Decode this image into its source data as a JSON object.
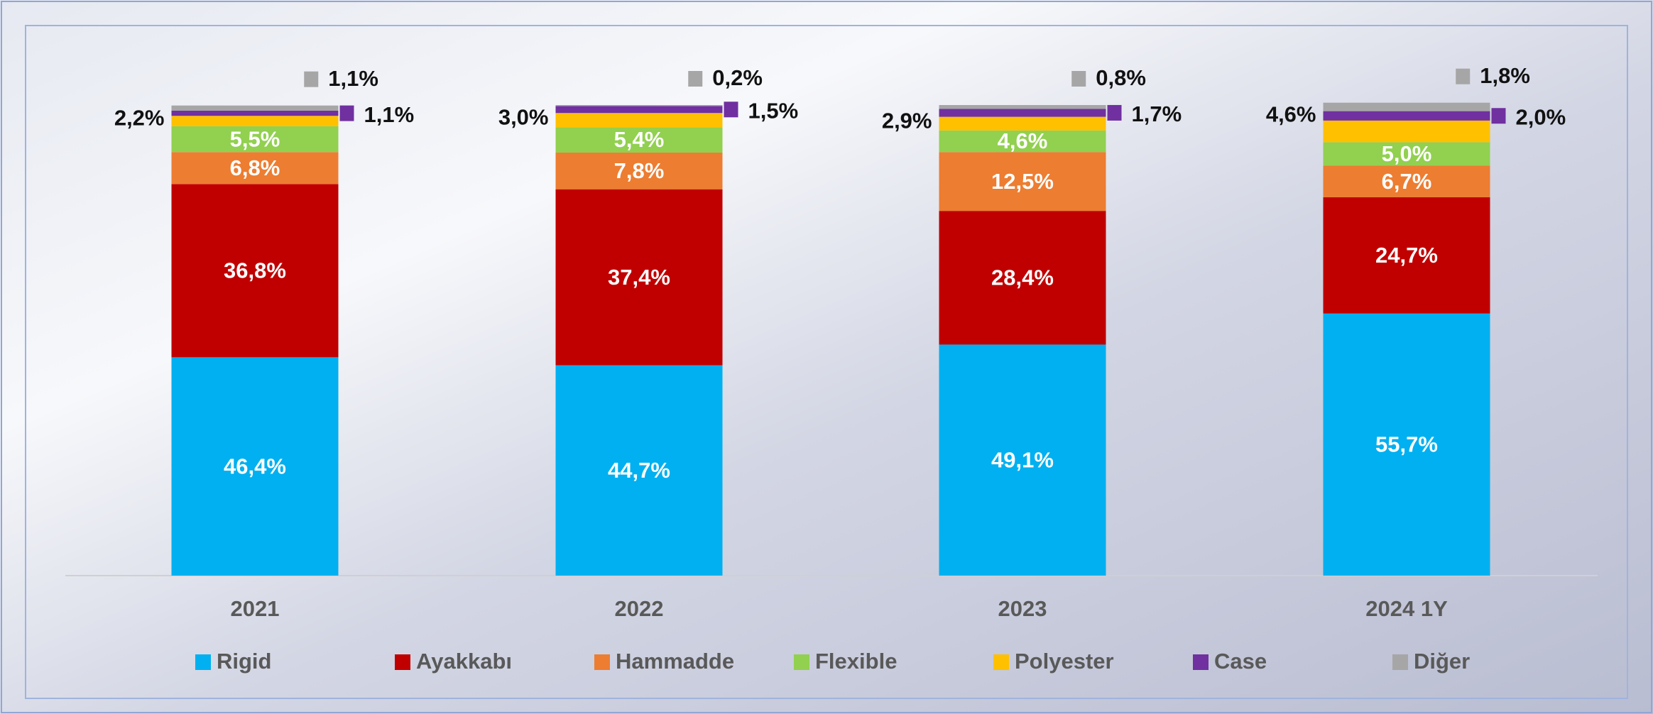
{
  "chart_data": {
    "type": "stacked_bar",
    "categories": [
      "2021",
      "2022",
      "2023",
      "2024 1Y"
    ],
    "ylim": [
      0,
      100
    ],
    "series": [
      {
        "name": "Rigid",
        "color": "#00b0f0",
        "values": [
          46.4,
          44.7,
          49.1,
          55.7
        ],
        "value_labels": [
          "46,4%",
          "44,7%",
          "49,1%",
          "55,7%"
        ]
      },
      {
        "name": "Ayakkabı",
        "color": "#c00000",
        "values": [
          36.8,
          37.4,
          28.4,
          24.7
        ],
        "value_labels": [
          "36,8%",
          "37,4%",
          "28,4%",
          "24,7%"
        ]
      },
      {
        "name": "Hammadde",
        "color": "#ed7d31",
        "values": [
          6.8,
          7.8,
          12.5,
          6.7
        ],
        "value_labels": [
          "6,8%",
          "7,8%",
          "12,5%",
          "6,7%"
        ]
      },
      {
        "name": "Flexible",
        "color": "#92d050",
        "values": [
          5.5,
          5.4,
          4.6,
          5.0
        ],
        "value_labels": [
          "5,5%",
          "5,4%",
          "4,6%",
          "5,0%"
        ]
      },
      {
        "name": "Polyester",
        "color": "#ffc000",
        "values": [
          2.2,
          3.0,
          2.9,
          4.6
        ],
        "value_labels": [
          "2,2%",
          "3,0%",
          "2,9%",
          "4,6%"
        ]
      },
      {
        "name": "Case",
        "color": "#7030a0",
        "values": [
          1.1,
          1.5,
          1.7,
          2.0
        ],
        "value_labels": [
          "1,1%",
          "1,5%",
          "1,7%",
          "2,0%"
        ]
      },
      {
        "name": "Diğer",
        "color": "#a6a6a6",
        "values": [
          1.1,
          0.2,
          0.8,
          1.8
        ],
        "value_labels": [
          "1,1%",
          "0,2%",
          "0,8%",
          "1,8%"
        ]
      }
    ]
  }
}
